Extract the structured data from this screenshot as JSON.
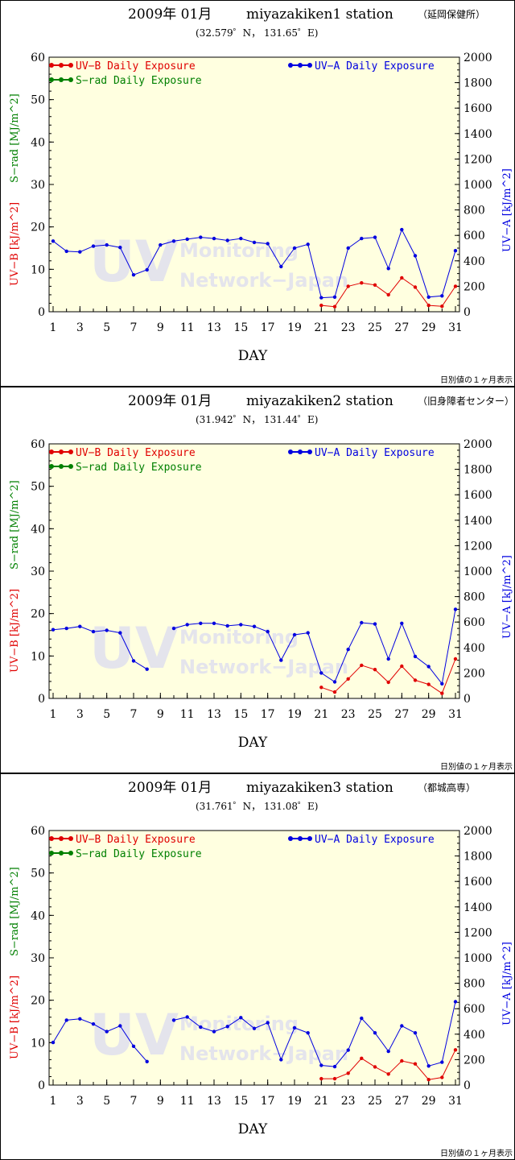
{
  "common": {
    "year_month": "2009年 01月",
    "xlabel": "DAY",
    "ylabel_uvb": "UV−B [kJ/m^2]",
    "ylabel_srad": "S−rad [MJ/m^2]",
    "ylabel_uva": "UV−A [kJ/m^2]",
    "legend_uvb": "UV−B Daily Exposure",
    "legend_srad": "S−rad Daily Exposure",
    "legend_uva": "UV−A  Daily Exposure",
    "footnote": "日別値の１ヶ月表示",
    "watermark_big": "UV",
    "watermark_line1": "Monitoring",
    "watermark_line2": "Network−Japan",
    "colors": {
      "uvb": "#e00000",
      "srad": "#008000",
      "uva": "#0000e0",
      "plot_bg": "#ffffe0"
    }
  },
  "chart_data": [
    {
      "type": "line",
      "station": "miyazakiken1 station",
      "location_jp": "（延岡保健所）",
      "coords": "(32.579゜N， 131.65゜E)",
      "x": [
        1,
        2,
        3,
        4,
        5,
        6,
        7,
        8,
        9,
        10,
        11,
        12,
        13,
        14,
        15,
        16,
        17,
        18,
        19,
        20,
        21,
        22,
        23,
        24,
        25,
        26,
        27,
        28,
        29,
        30,
        31
      ],
      "x_ticks": [
        1,
        3,
        5,
        7,
        9,
        11,
        13,
        15,
        17,
        19,
        21,
        23,
        25,
        27,
        29,
        31
      ],
      "left_ylim": [
        0,
        60
      ],
      "left_ticks": [
        0,
        10,
        20,
        30,
        40,
        50,
        60
      ],
      "right_ylim": [
        0,
        2000
      ],
      "right_ticks": [
        0,
        200,
        400,
        600,
        800,
        1000,
        1200,
        1400,
        1600,
        1800,
        2000
      ],
      "series": [
        {
          "name": "UV−A Daily Exposure",
          "axis": "right",
          "values": [
            555,
            475,
            470,
            515,
            525,
            505,
            290,
            330,
            525,
            555,
            570,
            585,
            575,
            560,
            575,
            545,
            535,
            355,
            500,
            530,
            110,
            115,
            500,
            575,
            585,
            340,
            645,
            440,
            115,
            125,
            480
          ]
        },
        {
          "name": "UV−B Daily Exposure",
          "axis": "left",
          "values": [
            null,
            null,
            null,
            null,
            null,
            null,
            null,
            null,
            null,
            null,
            null,
            null,
            null,
            null,
            null,
            null,
            null,
            null,
            null,
            null,
            1.5,
            1.2,
            6.0,
            6.8,
            6.3,
            4.0,
            8.0,
            5.8,
            1.5,
            1.3,
            6.0
          ]
        }
      ]
    },
    {
      "type": "line",
      "station": "miyazakiken2 station",
      "location_jp": "（旧身障者センター）",
      "coords": "(31.942゜N， 131.44゜E)",
      "x": [
        1,
        2,
        3,
        4,
        5,
        6,
        7,
        8,
        9,
        10,
        11,
        12,
        13,
        14,
        15,
        16,
        17,
        18,
        19,
        20,
        21,
        22,
        23,
        24,
        25,
        26,
        27,
        28,
        29,
        30,
        31
      ],
      "x_ticks": [
        1,
        3,
        5,
        7,
        9,
        11,
        13,
        15,
        17,
        19,
        21,
        23,
        25,
        27,
        29,
        31
      ],
      "left_ylim": [
        0,
        60
      ],
      "left_ticks": [
        0,
        10,
        20,
        30,
        40,
        50,
        60
      ],
      "right_ylim": [
        0,
        2000
      ],
      "right_ticks": [
        0,
        200,
        400,
        600,
        800,
        1000,
        1200,
        1400,
        1600,
        1800,
        2000
      ],
      "series": [
        {
          "name": "UV−A Daily Exposure",
          "axis": "right",
          "values": [
            540,
            550,
            565,
            525,
            535,
            515,
            295,
            230,
            null,
            550,
            580,
            590,
            590,
            570,
            580,
            565,
            525,
            300,
            500,
            515,
            200,
            130,
            385,
            595,
            585,
            310,
            590,
            330,
            250,
            115,
            700
          ]
        },
        {
          "name": "UV−B Daily Exposure",
          "axis": "left",
          "values": [
            null,
            null,
            null,
            null,
            null,
            null,
            null,
            null,
            null,
            null,
            null,
            null,
            null,
            null,
            null,
            null,
            null,
            null,
            null,
            null,
            2.6,
            1.5,
            4.6,
            7.8,
            6.8,
            3.8,
            7.6,
            4.3,
            3.3,
            1.2,
            9.3
          ]
        }
      ]
    },
    {
      "type": "line",
      "station": "miyazakiken3 station",
      "location_jp": "（都城高専）",
      "coords": "(31.761゜N， 131.08゜E)",
      "x": [
        1,
        2,
        3,
        4,
        5,
        6,
        7,
        8,
        9,
        10,
        11,
        12,
        13,
        14,
        15,
        16,
        17,
        18,
        19,
        20,
        21,
        22,
        23,
        24,
        25,
        26,
        27,
        28,
        29,
        30,
        31
      ],
      "x_ticks": [
        1,
        3,
        5,
        7,
        9,
        11,
        13,
        15,
        17,
        19,
        21,
        23,
        25,
        27,
        29,
        31
      ],
      "left_ylim": [
        0,
        60
      ],
      "left_ticks": [
        0,
        10,
        20,
        30,
        40,
        50,
        60
      ],
      "right_ylim": [
        0,
        2000
      ],
      "right_ticks": [
        0,
        200,
        400,
        600,
        800,
        1000,
        1200,
        1400,
        1600,
        1800,
        2000
      ],
      "series": [
        {
          "name": "UV−A Daily Exposure",
          "axis": "right",
          "values": [
            335,
            510,
            520,
            480,
            420,
            465,
            305,
            185,
            null,
            510,
            535,
            455,
            420,
            460,
            530,
            445,
            490,
            200,
            450,
            410,
            155,
            145,
            275,
            525,
            410,
            265,
            465,
            410,
            150,
            180,
            655
          ]
        },
        {
          "name": "UV−B Daily Exposure",
          "axis": "left",
          "values": [
            null,
            null,
            null,
            null,
            null,
            null,
            null,
            null,
            null,
            null,
            null,
            null,
            null,
            null,
            null,
            null,
            null,
            null,
            null,
            null,
            1.5,
            1.5,
            2.8,
            6.3,
            4.3,
            2.6,
            5.7,
            5.0,
            1.3,
            1.8,
            8.3
          ]
        }
      ]
    }
  ]
}
